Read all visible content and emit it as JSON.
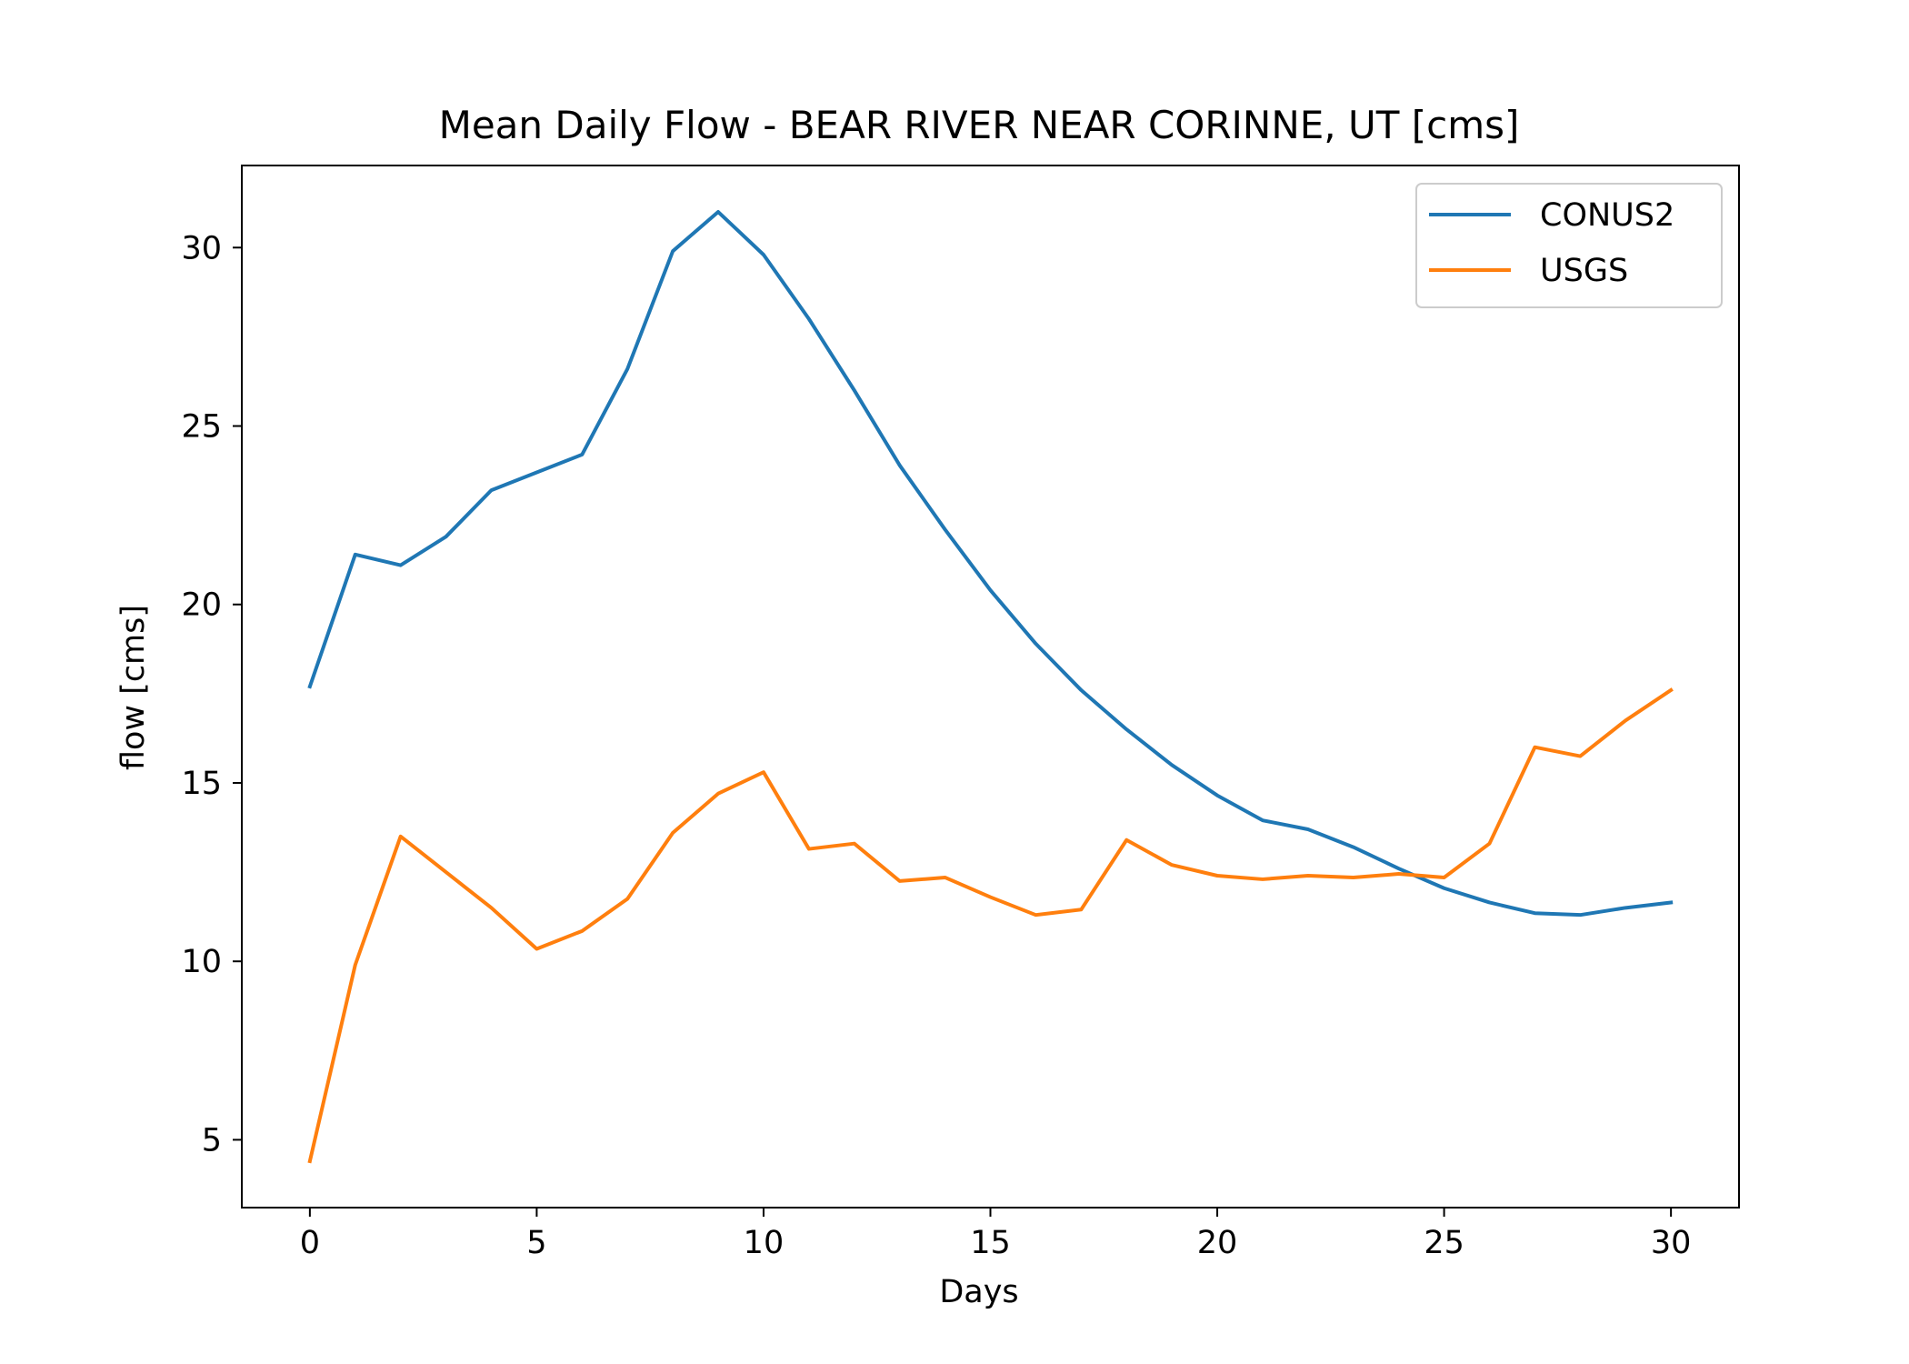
{
  "chart_data": {
    "type": "line",
    "title": "Mean Daily Flow - BEAR RIVER NEAR CORINNE, UT [cms]",
    "xlabel": "Days",
    "ylabel": "flow [cms]",
    "xlim": [
      -1.5,
      31.5
    ],
    "ylim": [
      3.1,
      32.3
    ],
    "xticks": [
      0,
      5,
      10,
      15,
      20,
      25,
      30
    ],
    "yticks": [
      5,
      10,
      15,
      20,
      25,
      30
    ],
    "grid": false,
    "legend_position": "top-right",
    "x": [
      0,
      1,
      2,
      3,
      4,
      5,
      6,
      7,
      8,
      9,
      10,
      11,
      12,
      13,
      14,
      15,
      16,
      17,
      18,
      19,
      20,
      21,
      22,
      23,
      24,
      25,
      26,
      27,
      28,
      29,
      30
    ],
    "series": [
      {
        "name": "CONUS2",
        "color": "#1f77b4",
        "values": [
          17.7,
          21.4,
          21.1,
          21.9,
          23.2,
          23.7,
          24.2,
          26.6,
          29.9,
          31.0,
          29.8,
          28.0,
          26.0,
          23.9,
          22.1,
          20.4,
          18.9,
          17.6,
          16.5,
          15.5,
          14.65,
          13.95,
          13.7,
          13.2,
          12.6,
          12.05,
          11.65,
          11.35,
          11.3,
          11.5,
          11.65
        ]
      },
      {
        "name": "USGS",
        "color": "#ff7f0e",
        "values": [
          4.4,
          9.9,
          13.5,
          12.5,
          11.5,
          10.35,
          10.85,
          11.75,
          13.6,
          14.7,
          15.3,
          13.15,
          13.3,
          12.25,
          12.35,
          11.8,
          11.3,
          11.45,
          13.4,
          12.7,
          12.4,
          12.3,
          12.4,
          12.35,
          12.45,
          12.35,
          13.3,
          16.0,
          15.75,
          16.75,
          17.6
        ]
      }
    ]
  }
}
